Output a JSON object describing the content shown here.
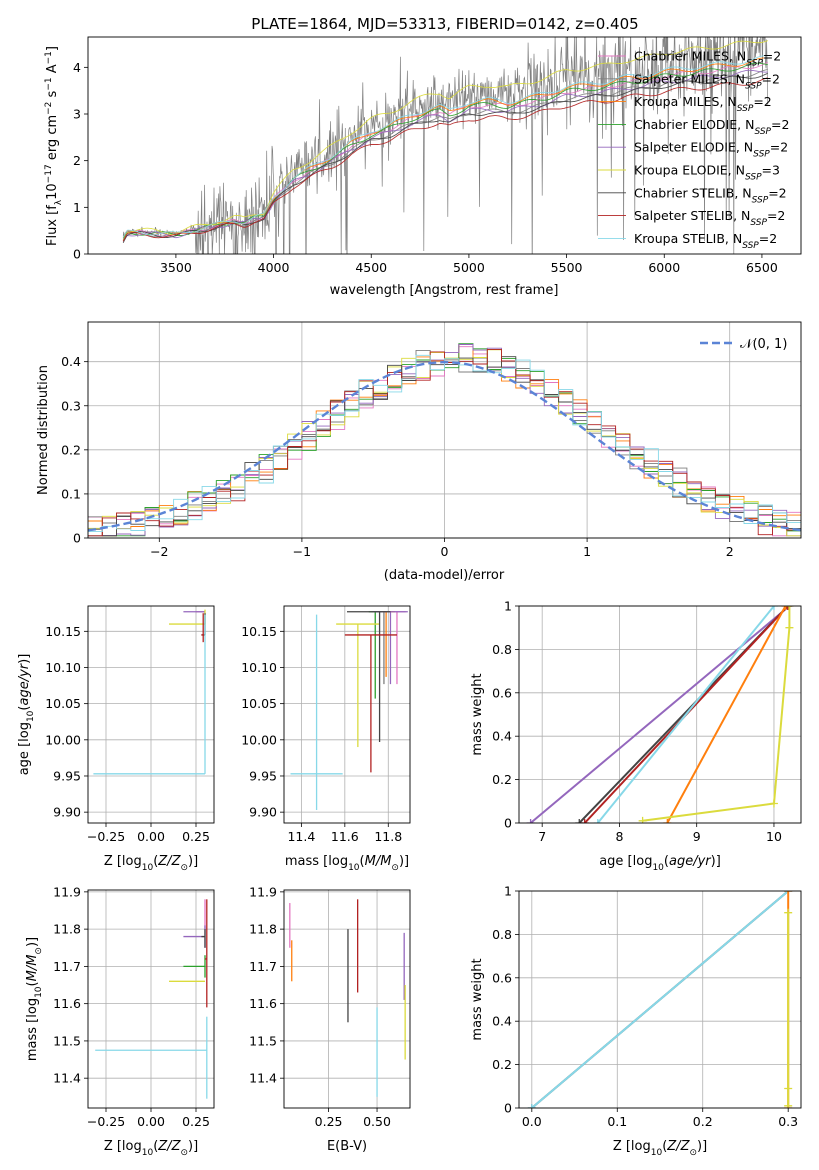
{
  "figure": {
    "title": "PLATE=1864, MJD=53313, FIBERID=0142, z=0.405"
  },
  "legend_models": [
    {
      "name": "Chabrier MILES",
      "nssp": "2",
      "color": "#e377c2"
    },
    {
      "name": "Salpeter MILES",
      "nssp": "2",
      "color": "#7f7f7f"
    },
    {
      "name": "Kroupa MILES",
      "nssp": "2",
      "color": "#ff7f0e"
    },
    {
      "name": "Chabrier ELODIE",
      "nssp": "2",
      "color": "#2ca02c"
    },
    {
      "name": "Salpeter ELODIE",
      "nssp": "2",
      "color": "#9467bd"
    },
    {
      "name": "Kroupa ELODIE",
      "nssp": "3",
      "color": "#dbdb3d"
    },
    {
      "name": "Chabrier STELIB",
      "nssp": "2",
      "color": "#444444"
    },
    {
      "name": "Salpeter STELIB",
      "nssp": "2",
      "color": "#b22222"
    },
    {
      "name": "Kroupa STELIB",
      "nssp": "2",
      "color": "#87d8e8"
    }
  ],
  "chart_data": [
    {
      "id": "spectrum",
      "type": "line",
      "title": "PLATE=1864, MJD=53313, FIBERID=0142, z=0.405",
      "xlabel": "wavelength [Angstrom, rest frame]",
      "ylabel_parts": [
        "Flux [f",
        "λ",
        "10",
        "−17",
        " erg cm",
        "−2",
        " s",
        "−1",
        " A",
        "−1",
        "]"
      ],
      "xlim": [
        3050,
        6700
      ],
      "ylim": [
        0,
        4.65
      ],
      "xticks": [
        3500,
        4000,
        4500,
        5000,
        5500,
        6000,
        6500
      ],
      "yticks": [
        0,
        1,
        2,
        3,
        4
      ],
      "continuum": [
        [
          3230,
          0.32
        ],
        [
          3250,
          0.48
        ],
        [
          3300,
          0.49
        ],
        [
          3400,
          0.47
        ],
        [
          3500,
          0.44
        ],
        [
          3600,
          0.55
        ],
        [
          3700,
          0.65
        ],
        [
          3800,
          0.75
        ],
        [
          3850,
          0.72
        ],
        [
          3900,
          0.82
        ],
        [
          3950,
          0.86
        ],
        [
          4000,
          1.25
        ],
        [
          4100,
          1.7
        ],
        [
          4200,
          1.95
        ],
        [
          4300,
          2.2
        ],
        [
          4400,
          2.5
        ],
        [
          4500,
          2.75
        ],
        [
          4600,
          2.9
        ],
        [
          4700,
          3.1
        ],
        [
          4800,
          3.25
        ],
        [
          4850,
          3.3
        ],
        [
          4900,
          3.2
        ],
        [
          5000,
          3.4
        ],
        [
          5100,
          3.45
        ],
        [
          5200,
          3.4
        ],
        [
          5300,
          3.5
        ],
        [
          5400,
          3.6
        ],
        [
          5500,
          3.75
        ],
        [
          5600,
          3.8
        ],
        [
          5700,
          3.85
        ],
        [
          5800,
          3.95
        ],
        [
          5900,
          4.0
        ],
        [
          6000,
          4.1
        ],
        [
          6200,
          4.2
        ],
        [
          6400,
          4.3
        ],
        [
          6550,
          4.4
        ]
      ],
      "data_range": [
        3230,
        6530
      ]
    },
    {
      "id": "residuals",
      "type": "bar",
      "xlabel": "(data-model)/error",
      "ylabel": "Normed distribution",
      "xlim": [
        -2.5,
        2.5
      ],
      "ylim": [
        0,
        0.49
      ],
      "xticks": [
        -2,
        -1,
        0,
        1,
        2
      ],
      "yticks": [
        0,
        0.1,
        0.2,
        0.3,
        0.4
      ],
      "bin_width": 0.1,
      "normal_label": "𝒩(0, 1)"
    },
    {
      "id": "age_vs_Z",
      "type": "scatter",
      "xlabel": "Z [log10(Z/Z⊙)]",
      "ylabel": "age [log10(age/yr)]",
      "xlim": [
        -0.35,
        0.35
      ],
      "ylim": [
        9.885,
        10.185
      ],
      "xticks": [
        -0.25,
        0,
        0.25
      ],
      "xtick_labels": [
        "−0.25",
        "0.00",
        "0.25"
      ],
      "yticks": [
        9.9,
        9.95,
        10.0,
        10.05,
        10.1,
        10.15
      ],
      "ytick_labels": [
        "9.90",
        "9.95",
        "10.00",
        "10.05",
        "10.10",
        "10.15"
      ],
      "points": [
        {
          "x": 0.3,
          "y": 10.177,
          "xerr": [
            0.05,
            0.0
          ],
          "yerr": [
            0,
            0
          ],
          "model": 0
        },
        {
          "x": 0.3,
          "y": 10.177,
          "xerr": [
            0.12,
            0.0
          ],
          "yerr": [
            0,
            0
          ],
          "model": 4
        },
        {
          "x": 0.3,
          "y": 10.16,
          "xerr": [
            0.2,
            0.0
          ],
          "yerr": [
            0,
            0.02
          ],
          "model": 5
        },
        {
          "x": 0.3,
          "y": 10.145,
          "xerr": [
            0.02,
            0
          ],
          "yerr": [
            0,
            0.03
          ],
          "model": 6
        },
        {
          "x": 0.29,
          "y": 10.145,
          "xerr": [
            0.01,
            0
          ],
          "yerr": [
            0.01,
            0.03
          ],
          "model": 7
        },
        {
          "x": 0.3,
          "y": 9.953,
          "xerr": [
            0.62,
            0.0
          ],
          "yerr": [
            0,
            0.22
          ],
          "model": 8
        }
      ]
    },
    {
      "id": "age_vs_mass",
      "type": "scatter",
      "xlabel": "mass [log10(M/M⊙)]",
      "ylabel": "",
      "xlim": [
        11.32,
        11.9
      ],
      "ylim": [
        9.885,
        10.185
      ],
      "xticks": [
        11.4,
        11.6,
        11.8
      ],
      "xtick_labels": [
        "11.4",
        "11.6",
        "11.8"
      ],
      "yticks": [
        9.9,
        9.95,
        10.0,
        10.05,
        10.1,
        10.15
      ],
      "ytick_labels": [
        "9.90",
        "9.95",
        "10.00",
        "10.05",
        "10.10",
        "10.15"
      ],
      "points": [
        {
          "x": 11.84,
          "y": 10.177,
          "xerr": [
            0.04,
            0.04
          ],
          "yerr": [
            0.1,
            0
          ],
          "model": 0
        },
        {
          "x": 11.78,
          "y": 10.177,
          "xerr": [
            0.05,
            0.05
          ],
          "yerr": [
            0.1,
            0
          ],
          "model": 1
        },
        {
          "x": 11.79,
          "y": 10.177,
          "xerr": [
            0.04,
            0.04
          ],
          "yerr": [
            0.09,
            0
          ],
          "model": 2
        },
        {
          "x": 11.74,
          "y": 10.177,
          "xerr": [
            0.03,
            0.03
          ],
          "yerr": [
            0.12,
            0
          ],
          "model": 3
        },
        {
          "x": 11.81,
          "y": 10.177,
          "xerr": [
            0.08,
            0.08
          ],
          "yerr": [
            0.1,
            0
          ],
          "model": 4
        },
        {
          "x": 11.66,
          "y": 10.16,
          "xerr": [
            0.1,
            0.1
          ],
          "yerr": [
            0.17,
            0
          ],
          "model": 5
        },
        {
          "x": 11.76,
          "y": 10.177,
          "xerr": [
            0.15,
            0.05
          ],
          "yerr": [
            0.18,
            0
          ],
          "model": 6
        },
        {
          "x": 11.72,
          "y": 10.145,
          "xerr": [
            0.12,
            0.12
          ],
          "yerr": [
            0.19,
            0
          ],
          "model": 7
        },
        {
          "x": 11.47,
          "y": 9.953,
          "xerr": [
            0.12,
            0.12
          ],
          "yerr": [
            0.05,
            0.22
          ],
          "model": 8
        }
      ]
    },
    {
      "id": "massweight_vs_age",
      "type": "line",
      "xlabel": "age [log10(age/yr)]",
      "ylabel": "mass weight",
      "xlim": [
        6.7,
        10.35
      ],
      "ylim": [
        0,
        1
      ],
      "xticks": [
        7,
        8,
        9,
        10
      ],
      "yticks": [
        0,
        0.2,
        0.4,
        0.6,
        0.8,
        1.0
      ],
      "series": [
        {
          "model": 4,
          "x": [
            6.85,
            10.2
          ],
          "y": [
            0,
            1
          ]
        },
        {
          "model": 6,
          "x": [
            7.48,
            10.18
          ],
          "y": [
            0,
            1
          ]
        },
        {
          "model": 7,
          "x": [
            7.55,
            10.18
          ],
          "y": [
            0,
            1
          ]
        },
        {
          "model": 8,
          "x": [
            7.72,
            10.0
          ],
          "y": [
            0,
            1
          ]
        },
        {
          "model": 2,
          "x": [
            8.62,
            10.15
          ],
          "y": [
            0,
            1
          ]
        },
        {
          "model": 5,
          "x": [
            8.3,
            10.0,
            10.2,
            10.2
          ],
          "y": [
            0.01,
            0.09,
            0.9,
            1.0
          ]
        }
      ]
    },
    {
      "id": "mass_vs_Z",
      "type": "scatter",
      "xlabel": "Z [log10(Z/Z⊙)]",
      "ylabel": "mass [log10(M/M⊙)]",
      "xlim": [
        -0.35,
        0.35
      ],
      "ylim": [
        11.32,
        11.905
      ],
      "xticks": [
        -0.25,
        0,
        0.25
      ],
      "xtick_labels": [
        "−0.25",
        "0.00",
        "0.25"
      ],
      "yticks": [
        11.4,
        11.5,
        11.6,
        11.7,
        11.8,
        11.9
      ],
      "ytick_labels": [
        "11.4",
        "11.5",
        "11.6",
        "11.7",
        "11.8",
        "11.9"
      ],
      "points": [
        {
          "x": 0.3,
          "y": 11.84,
          "xerr": [
            0,
            0
          ],
          "yerr": [
            0.04,
            0.04
          ],
          "model": 0
        },
        {
          "x": 0.3,
          "y": 11.78,
          "xerr": [
            0.12,
            0
          ],
          "yerr": [
            0.03,
            0.03
          ],
          "model": 4
        },
        {
          "x": 0.3,
          "y": 11.7,
          "xerr": [
            0.12,
            0
          ],
          "yerr": [
            0.03,
            0.03
          ],
          "model": 3
        },
        {
          "x": 0.3,
          "y": 11.66,
          "xerr": [
            0.2,
            0
          ],
          "yerr": [
            0,
            0
          ],
          "model": 5
        },
        {
          "x": 0.3,
          "y": 11.78,
          "xerr": [
            0.02,
            0
          ],
          "yerr": [
            0.03,
            0.02
          ],
          "model": 6
        },
        {
          "x": 0.31,
          "y": 11.72,
          "xerr": [
            0.01,
            0
          ],
          "yerr": [
            0.13,
            0.16
          ],
          "model": 7
        },
        {
          "x": 0.31,
          "y": 11.475,
          "xerr": [
            0.62,
            0
          ],
          "yerr": [
            0.13,
            0.09
          ],
          "model": 8
        }
      ]
    },
    {
      "id": "mass_vs_ebv",
      "type": "scatter",
      "xlabel": "E(B-V)",
      "ylabel": "",
      "xlim": [
        0.02,
        0.67
      ],
      "ylim": [
        11.32,
        11.905
      ],
      "xticks": [
        0.25,
        0.5
      ],
      "xtick_labels": [
        "0.25",
        "0.50"
      ],
      "yticks": [
        11.4,
        11.5,
        11.6,
        11.7,
        11.8,
        11.9
      ],
      "ytick_labels": [
        "11.4",
        "11.5",
        "11.6",
        "11.7",
        "11.8",
        "11.9"
      ],
      "points": [
        {
          "x": 0.05,
          "y": 11.81,
          "xerr": [
            0,
            0
          ],
          "yerr": [
            0.06,
            0.06
          ],
          "model": 0
        },
        {
          "x": 0.06,
          "y": 11.71,
          "xerr": [
            0,
            0
          ],
          "yerr": [
            0.05,
            0.06
          ],
          "model": 2
        },
        {
          "x": 0.35,
          "y": 11.67,
          "xerr": [
            0,
            0
          ],
          "yerr": [
            0.12,
            0.13
          ],
          "model": 6
        },
        {
          "x": 0.4,
          "y": 11.75,
          "xerr": [
            0,
            0
          ],
          "yerr": [
            0.12,
            0.13
          ],
          "model": 7
        },
        {
          "x": 0.5,
          "y": 11.47,
          "xerr": [
            0,
            0
          ],
          "yerr": [
            0.12,
            0.12
          ],
          "model": 8
        },
        {
          "x": 0.64,
          "y": 11.7,
          "xerr": [
            0,
            0
          ],
          "yerr": [
            0.09,
            0.09
          ],
          "model": 4
        },
        {
          "x": 0.645,
          "y": 11.55,
          "xerr": [
            0,
            0
          ],
          "yerr": [
            0.1,
            0.1
          ],
          "model": 5
        }
      ]
    },
    {
      "id": "massweight_vs_Z",
      "type": "line",
      "xlabel": "Z [log10(Z/Z⊙)]",
      "ylabel": "mass weight",
      "xlim": [
        -0.015,
        0.315
      ],
      "ylim": [
        0,
        1
      ],
      "xticks": [
        0,
        0.1,
        0.2,
        0.3
      ],
      "xtick_labels": [
        "0.0",
        "0.1",
        "0.2",
        "0.3"
      ],
      "yticks": [
        0,
        0.2,
        0.4,
        0.6,
        0.8,
        1.0
      ],
      "series": [
        {
          "model": 6,
          "x": [
            0,
            0.3
          ],
          "y": [
            0,
            1
          ]
        },
        {
          "model": 8,
          "x": [
            0,
            0.3
          ],
          "y": [
            0,
            1
          ]
        },
        {
          "model": 2,
          "x": [
            0.3,
            0.3
          ],
          "y": [
            0,
            1
          ]
        },
        {
          "model": 5,
          "x": [
            0.3,
            0.3,
            0.3
          ],
          "y": [
            0.01,
            0.09,
            0.9
          ]
        }
      ]
    }
  ]
}
